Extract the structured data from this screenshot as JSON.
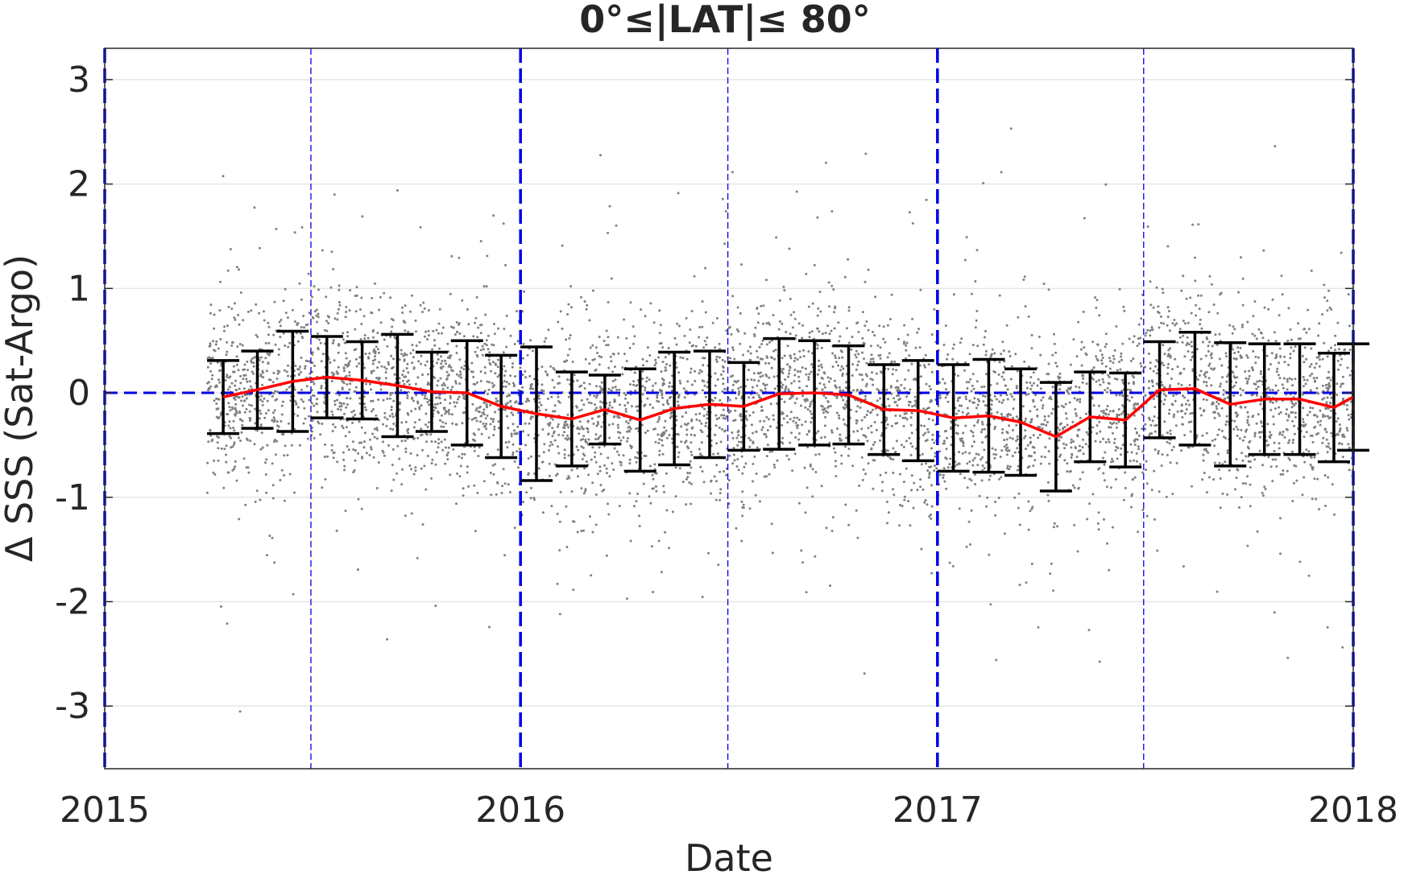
{
  "chart_data": {
    "type": "scatter",
    "title": "0°≤|LAT|≤ 80°",
    "xlabel": "Date",
    "ylabel": "Δ SSS (Sat-Argo)",
    "xlim": [
      "2015-01-01",
      "2018-01-01"
    ],
    "ylim": [
      -3.6,
      3.3
    ],
    "x_ticks": [
      "2015",
      "2016",
      "2017",
      "2018"
    ],
    "y_ticks": [
      -3,
      -2,
      -1,
      0,
      1,
      2,
      3
    ],
    "grid": "horizontal",
    "reference_line": {
      "y": 0,
      "color": "#0000e6",
      "style": "dashed"
    },
    "year_markers": [
      "2015-01-01",
      "2016-01-01",
      "2017-01-01",
      "2018-01-01"
    ],
    "half_year_markers": [
      "2015-07-01",
      "2016-07-01",
      "2017-07-01"
    ],
    "series": [
      {
        "kind": "scatter_points",
        "color": "#808080",
        "x_range": [
          "2015-04-01",
          "2018-01-01"
        ],
        "description_stats": "daily match-up differences"
      },
      {
        "kind": "monthly_mean_with_std",
        "line_color": "#ff0000",
        "errorbar_color": "#000000",
        "points": [
          {
            "date": "2015-04-15",
            "mean": -0.04,
            "std": 0.35
          },
          {
            "date": "2015-05-15",
            "mean": 0.03,
            "std": 0.37
          },
          {
            "date": "2015-06-15",
            "mean": 0.11,
            "std": 0.48
          },
          {
            "date": "2015-07-15",
            "mean": 0.15,
            "std": 0.39
          },
          {
            "date": "2015-08-15",
            "mean": 0.12,
            "std": 0.37
          },
          {
            "date": "2015-09-15",
            "mean": 0.07,
            "std": 0.49
          },
          {
            "date": "2015-10-15",
            "mean": 0.01,
            "std": 0.38
          },
          {
            "date": "2015-11-15",
            "mean": 0.0,
            "std": 0.5
          },
          {
            "date": "2015-12-15",
            "mean": -0.13,
            "std": 0.49
          },
          {
            "date": "2016-01-15",
            "mean": -0.2,
            "std": 0.64
          },
          {
            "date": "2016-02-15",
            "mean": -0.25,
            "std": 0.45
          },
          {
            "date": "2016-03-15",
            "mean": -0.16,
            "std": 0.33
          },
          {
            "date": "2016-04-15",
            "mean": -0.26,
            "std": 0.49
          },
          {
            "date": "2016-05-15",
            "mean": -0.15,
            "std": 0.54
          },
          {
            "date": "2016-06-15",
            "mean": -0.11,
            "std": 0.51
          },
          {
            "date": "2016-07-15",
            "mean": -0.13,
            "std": 0.42
          },
          {
            "date": "2016-08-15",
            "mean": -0.01,
            "std": 0.53
          },
          {
            "date": "2016-09-15",
            "mean": 0.0,
            "std": 0.5
          },
          {
            "date": "2016-10-15",
            "mean": -0.02,
            "std": 0.47
          },
          {
            "date": "2016-11-15",
            "mean": -0.16,
            "std": 0.43
          },
          {
            "date": "2016-12-15",
            "mean": -0.17,
            "std": 0.48
          },
          {
            "date": "2017-01-15",
            "mean": -0.24,
            "std": 0.51
          },
          {
            "date": "2017-02-15",
            "mean": -0.22,
            "std": 0.54
          },
          {
            "date": "2017-03-15",
            "mean": -0.28,
            "std": 0.51
          },
          {
            "date": "2017-04-15",
            "mean": -0.42,
            "std": 0.52
          },
          {
            "date": "2017-05-15",
            "mean": -0.23,
            "std": 0.43
          },
          {
            "date": "2017-06-15",
            "mean": -0.26,
            "std": 0.45
          },
          {
            "date": "2017-07-15",
            "mean": 0.03,
            "std": 0.46
          },
          {
            "date": "2017-08-15",
            "mean": 0.04,
            "std": 0.54
          },
          {
            "date": "2017-09-15",
            "mean": -0.11,
            "std": 0.59
          },
          {
            "date": "2017-10-15",
            "mean": -0.06,
            "std": 0.53
          },
          {
            "date": "2017-11-15",
            "mean": -0.06,
            "std": 0.53
          },
          {
            "date": "2017-12-15",
            "mean": -0.14,
            "std": 0.52
          },
          {
            "date": "2018-01-01",
            "mean": -0.04,
            "std": 0.51
          }
        ]
      }
    ]
  }
}
